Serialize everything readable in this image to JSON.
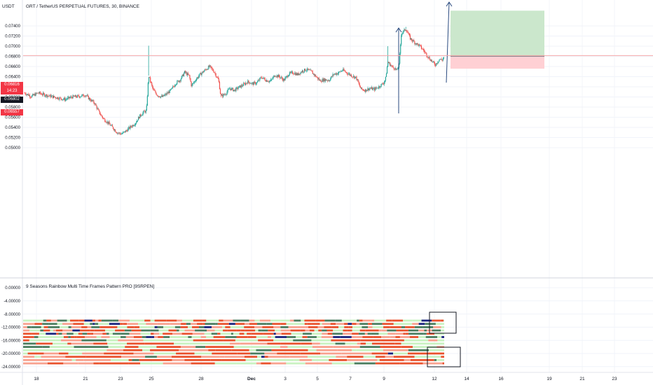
{
  "header": {
    "unit_label": "USDT",
    "symbol_title": "GRT / TetherUS PERPETUAL FUTURES, 30, BINANCE"
  },
  "price_badges": [
    {
      "label": "0.06816",
      "color": "#f23645"
    },
    {
      "label": "14:23",
      "color": "#f23645"
    },
    {
      "label": "0.06802",
      "color": "#131722"
    },
    {
      "label": "0.06557",
      "color": "#f23645"
    }
  ],
  "indicator": {
    "title": "9 Seasons Rainbow Multi Time Frames Pattern PRO [9SRPEN]"
  },
  "chart_data": [
    {
      "type": "candlestick",
      "title": "GRT / TetherUS PERPETUAL FUTURES, 30, BINANCE",
      "ylabel": "USDT",
      "ylim": [
        0.0496,
        0.0774
      ],
      "y_ticks": [
        "0.07400",
        "0.07200",
        "0.07000",
        "0.06800",
        "0.06600",
        "0.06400",
        "0.06200",
        "0.06000",
        "0.05800",
        "0.05600",
        "0.05400",
        "0.05200",
        "0.05000"
      ],
      "x_ticks": [
        "18",
        "21",
        "23",
        "25",
        "28",
        "Dec",
        "3",
        "5",
        "7",
        "9",
        "12",
        "14",
        "16",
        "19",
        "21",
        "23"
      ],
      "close_path": [
        [
          0,
          0.0608
        ],
        [
          3,
          0.0601
        ],
        [
          6,
          0.0608
        ],
        [
          9,
          0.0604
        ],
        [
          12,
          0.0601
        ],
        [
          15,
          0.0598
        ],
        [
          18,
          0.0595
        ],
        [
          21,
          0.06
        ],
        [
          24,
          0.0601
        ],
        [
          27,
          0.0604
        ],
        [
          29,
          0.0595
        ],
        [
          31,
          0.0588
        ],
        [
          33,
          0.057
        ],
        [
          35,
          0.0557
        ],
        [
          37,
          0.0549
        ],
        [
          39,
          0.054
        ],
        [
          41,
          0.053
        ],
        [
          43,
          0.0527
        ],
        [
          45,
          0.0533
        ],
        [
          47,
          0.0541
        ],
        [
          49,
          0.0548
        ],
        [
          51,
          0.0562
        ],
        [
          53,
          0.0571
        ],
        [
          54,
          0.0572
        ],
        [
          55,
          0.0642
        ],
        [
          57,
          0.0614
        ],
        [
          59,
          0.0603
        ],
        [
          61,
          0.06
        ],
        [
          63,
          0.0606
        ],
        [
          65,
          0.0614
        ],
        [
          67,
          0.0627
        ],
        [
          69,
          0.0634
        ],
        [
          71,
          0.0649
        ],
        [
          73,
          0.0641
        ],
        [
          74,
          0.0622
        ],
        [
          76,
          0.0635
        ],
        [
          78,
          0.0645
        ],
        [
          80,
          0.0653
        ],
        [
          82,
          0.066
        ],
        [
          84,
          0.065
        ],
        [
          86,
          0.0633
        ],
        [
          87,
          0.0601
        ],
        [
          89,
          0.0606
        ],
        [
          91,
          0.0617
        ],
        [
          93,
          0.0613
        ],
        [
          95,
          0.0619
        ],
        [
          97,
          0.0624
        ],
        [
          99,
          0.063
        ],
        [
          101,
          0.0626
        ],
        [
          103,
          0.0628
        ],
        [
          105,
          0.0639
        ],
        [
          107,
          0.0633
        ],
        [
          109,
          0.0631
        ],
        [
          111,
          0.0643
        ],
        [
          113,
          0.064
        ],
        [
          115,
          0.0633
        ],
        [
          117,
          0.0645
        ],
        [
          119,
          0.0648
        ],
        [
          121,
          0.0644
        ],
        [
          123,
          0.0651
        ],
        [
          125,
          0.0654
        ],
        [
          127,
          0.065
        ],
        [
          129,
          0.0641
        ],
        [
          131,
          0.0632
        ],
        [
          133,
          0.0634
        ],
        [
          135,
          0.0633
        ],
        [
          137,
          0.0645
        ],
        [
          139,
          0.0647
        ],
        [
          141,
          0.0653
        ],
        [
          143,
          0.0647
        ],
        [
          145,
          0.0642
        ],
        [
          147,
          0.0638
        ],
        [
          149,
          0.0616
        ],
        [
          151,
          0.0613
        ],
        [
          153,
          0.0617
        ],
        [
          155,
          0.0615
        ],
        [
          157,
          0.062
        ],
        [
          159,
          0.0627
        ],
        [
          160,
          0.0635
        ],
        [
          161,
          0.0669
        ],
        [
          163,
          0.0659
        ],
        [
          164,
          0.0657
        ],
        [
          165,
          0.0652
        ],
        [
          166,
          0.0663
        ],
        [
          167,
          0.0725
        ],
        [
          169,
          0.0734
        ],
        [
          171,
          0.0715
        ],
        [
          173,
          0.0707
        ],
        [
          175,
          0.0701
        ],
        [
          177,
          0.0691
        ],
        [
          179,
          0.0678
        ],
        [
          181,
          0.0668
        ],
        [
          182,
          0.0663
        ],
        [
          183,
          0.0669
        ],
        [
          184,
          0.0675
        ],
        [
          185,
          0.0672
        ],
        [
          186,
          0.068
        ]
      ],
      "wick_spikes": [
        [
          55,
          0.0701
        ],
        [
          161,
          0.07
        ],
        [
          169,
          0.0738
        ]
      ],
      "x_range": [
        0,
        240
      ],
      "position_tool": {
        "entry": 0.06802,
        "target": 0.077,
        "stop": 0.06557,
        "profit_color": "#c8e6c9",
        "loss_color": "#ffcdd2"
      },
      "horizontal_line": 0.06816
    },
    {
      "type": "heatmap",
      "title": "9 Seasons Rainbow Multi Time Frames Pattern PRO [9SRPEN]",
      "ylim": [
        -24.0,
        0.0
      ],
      "y_ticks": [
        "0.00000",
        "-4.00000",
        "-8.00000",
        "-12.00000",
        "-16.00000",
        "-20.00000",
        "-24.00000"
      ],
      "rows": [
        -10,
        -11,
        -12,
        -13,
        -14,
        -15,
        -16,
        -17,
        -18,
        -19,
        -20,
        -21,
        -22,
        -23
      ],
      "colors": {
        "strong_bear": "#e9522d",
        "weak_bear": "#f8a28f",
        "strong_bull": "#4a7d5f",
        "weak_bull": "#c9f2c1",
        "extreme": "#1a237e"
      }
    }
  ]
}
